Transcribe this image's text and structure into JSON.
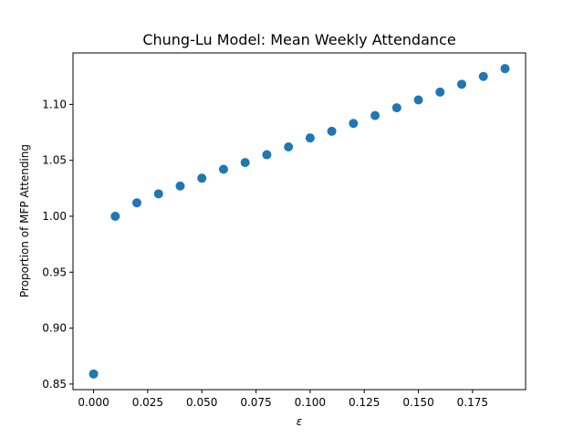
{
  "chart_data": {
    "type": "scatter",
    "title": "Chung-Lu Model: Mean Weekly Attendance",
    "xlabel": "ε",
    "ylabel": "Proportion of MFP Attending",
    "xlim": [
      -0.0095,
      0.1995
    ],
    "ylim": [
      0.845,
      1.146
    ],
    "xticks": [
      0.0,
      0.025,
      0.05,
      0.075,
      0.1,
      0.125,
      0.15,
      0.175
    ],
    "xtick_labels": [
      "0.000",
      "0.025",
      "0.050",
      "0.075",
      "0.100",
      "0.125",
      "0.150",
      "0.175"
    ],
    "yticks": [
      0.85,
      0.9,
      0.95,
      1.0,
      1.05,
      1.1
    ],
    "ytick_labels": [
      "0.85",
      "0.90",
      "0.95",
      "1.00",
      "1.05",
      "1.10"
    ],
    "grid": false,
    "marker_color": "#1f77b4",
    "series": [
      {
        "x": [
          0.0,
          0.01,
          0.02,
          0.03,
          0.04,
          0.05,
          0.06,
          0.07,
          0.08,
          0.09,
          0.1,
          0.11,
          0.12,
          0.13,
          0.14,
          0.15,
          0.16,
          0.17,
          0.18,
          0.19
        ],
        "y": [
          0.859,
          1.0,
          1.012,
          1.02,
          1.027,
          1.034,
          1.042,
          1.048,
          1.055,
          1.062,
          1.07,
          1.076,
          1.083,
          1.09,
          1.097,
          1.104,
          1.111,
          1.118,
          1.125,
          1.132
        ]
      }
    ]
  }
}
